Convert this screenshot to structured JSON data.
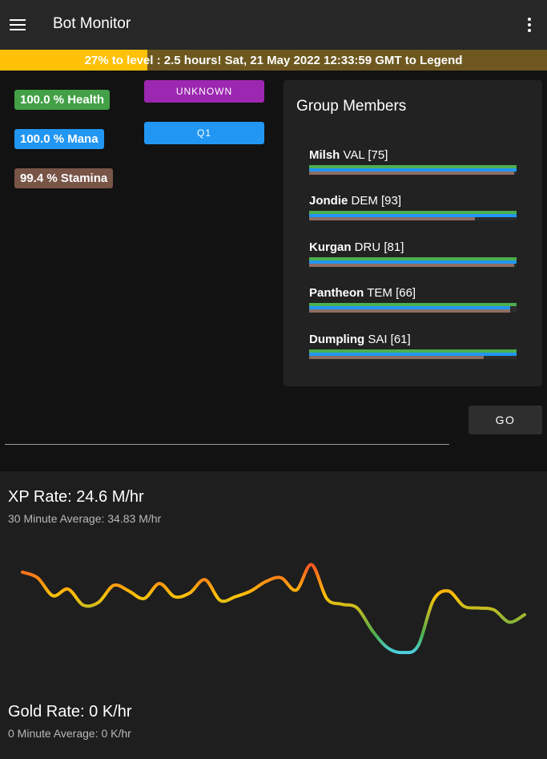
{
  "app": {
    "title": "Bot Monitor",
    "menu_icon": "menu-icon",
    "more_icon": "more-vert-icon"
  },
  "level": {
    "percent_text": "27% to level",
    "rest_text": " : 2.5 hours! Sat, 21 May 2022 12:33:59 GMT to Legend",
    "progress": 0.27,
    "track_color": "#6e5820",
    "fill_color": "#ffc107"
  },
  "stats": {
    "health": "100.0 % Health",
    "mana": "100.0 % Mana",
    "stamina": "99.4 % Stamina"
  },
  "buttons": {
    "unknown": "UNKNOWN",
    "q1": "Q1",
    "go": "GO"
  },
  "group": {
    "title": "Group Members",
    "members": [
      {
        "name": "Milsh",
        "info": "VAL [75]",
        "health": 1.0,
        "mana": 1.0,
        "stamina": 0.99
      },
      {
        "name": "Jondie",
        "info": "DEM [93]",
        "health": 1.0,
        "mana": 1.0,
        "stamina": 0.8
      },
      {
        "name": "Kurgan",
        "info": "DRU [81]",
        "health": 1.0,
        "mana": 1.0,
        "stamina": 0.99
      },
      {
        "name": "Pantheon",
        "info": "TEM [66]",
        "health": 1.0,
        "mana": 0.97,
        "stamina": 0.97
      },
      {
        "name": "Dumpling",
        "info": "SAI [61]",
        "health": 1.0,
        "mana": 1.0,
        "stamina": 0.84
      }
    ],
    "colors": {
      "health": "#4caf50",
      "mana": "#2196f3",
      "stamina": "#8d6e63"
    }
  },
  "xp": {
    "title": "XP Rate: 24.6 M/hr",
    "average": "30 Minute Average: 34.83 M/hr"
  },
  "gold": {
    "title": "Gold Rate: 0 K/hr",
    "average": "0 Minute Average: 0 K/hr"
  },
  "chart_data": {
    "type": "line",
    "title": "",
    "xlabel": "",
    "ylabel": "",
    "grid": false,
    "axes_visible": false,
    "y_range_visible": [
      0,
      1
    ],
    "gradient": [
      "#ff5722",
      "#ffc107",
      "#4caf50",
      "#4dd0e1"
    ],
    "values": [
      0.9,
      0.84,
      0.65,
      0.72,
      0.55,
      0.58,
      0.76,
      0.7,
      0.62,
      0.78,
      0.64,
      0.68,
      0.82,
      0.6,
      0.64,
      0.7,
      0.8,
      0.84,
      0.71,
      0.98,
      0.62,
      0.56,
      0.52,
      0.28,
      0.1,
      0.05,
      0.12,
      0.6,
      0.7,
      0.54,
      0.52,
      0.5,
      0.37,
      0.45
    ]
  }
}
